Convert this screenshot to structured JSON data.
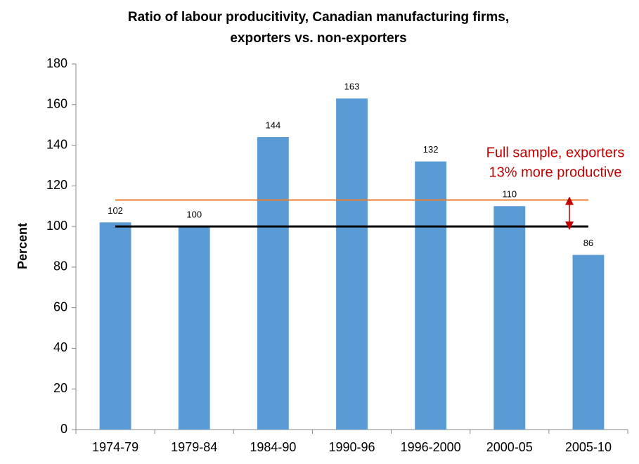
{
  "chart_data": {
    "type": "bar",
    "title": [
      "Ratio of labour producitivity, Canadian manufacturing firms,",
      "exporters vs. non-exporters"
    ],
    "y_label": "Percent",
    "categories": [
      "1974-79",
      "1979-84",
      "1984-90",
      "1990-96",
      "1996-2000",
      "2000-05",
      "2005-10"
    ],
    "values": [
      102,
      100,
      144,
      163,
      132,
      110,
      86
    ],
    "color": "#5b9bd5",
    "ylim": [
      0,
      180
    ],
    "yticks": [
      0,
      20,
      40,
      60,
      80,
      100,
      120,
      140,
      160,
      180
    ],
    "grid": false,
    "reference_lines": [
      {
        "value": 100,
        "color": "#000000"
      },
      {
        "value": 113,
        "color": "#ed7d31"
      }
    ],
    "annotation": [
      "Full sample, exporters",
      "13% more productive"
    ]
  }
}
